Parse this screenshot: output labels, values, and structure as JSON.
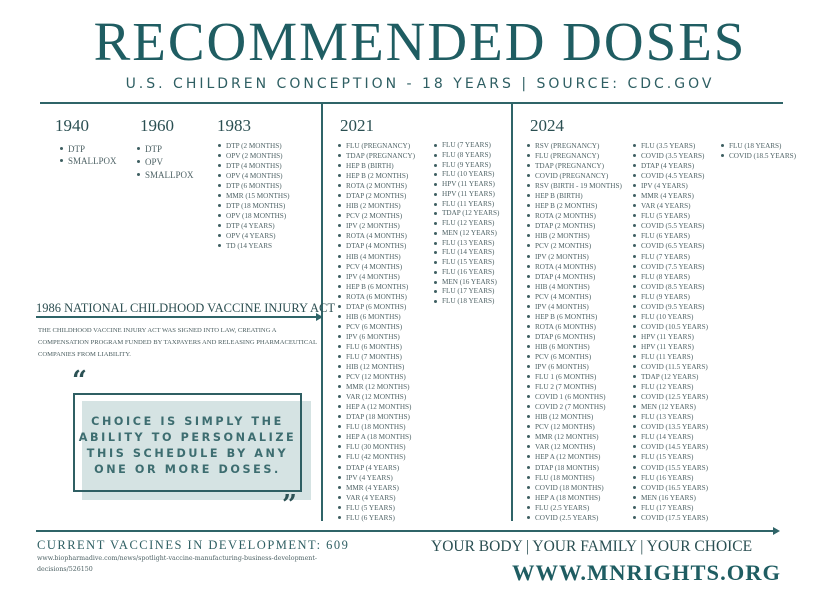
{
  "header": {
    "title": "RECOMMENDED DOSES",
    "subtitle": "U.S. CHILDREN CONCEPTION - 18 YEARS | SOURCE: CDC.GOV"
  },
  "colors": {
    "primary": "#1f5d62",
    "quote_bg": "#d5e3e3",
    "text": "#4f6366"
  },
  "schedules": {
    "y1940": {
      "year": "1940",
      "items": [
        "DTP",
        "SMALLPOX"
      ]
    },
    "y1960": {
      "year": "1960",
      "items": [
        "DTP",
        "OPV",
        "SMALLPOX"
      ]
    },
    "y1983": {
      "year": "1983",
      "items": [
        "DTP (2 MONTHS)",
        "OPV (2 MONTHS)",
        "DTP (4 MONTHS)",
        "OPV (4 MONTHS)",
        "DTP (6 MONTHS)",
        "MMR (15 MONTHS)",
        "DTP (18 MONTHS)",
        "OPV (18 MONTHS)",
        "DTP (4 YEARS)",
        "OPV (4 YEARS)",
        "TD (14 YEARS"
      ]
    },
    "y2021": {
      "year": "2021",
      "col1": [
        "FLU (PREGNANCY)",
        "TDAP (PREGNANCY)",
        "HEP B (BIRTH)",
        "HEP B (2 MONTHS)",
        "ROTA (2 MONTHS)",
        "DTAP (2 MONTHS)",
        "HIB (2 MONTHS)",
        "PCV (2 MONTHS)",
        "IPV (2 MONTHS)",
        "ROTA (4 MONTHS)",
        "DTAP (4 MONTHS)",
        "HIB (4 MONTHS)",
        "PCV (4 MONTHS)",
        "IPV (4 MONTHS)",
        "HEP B (6 MONTHS)",
        "ROTA (6 MONTHS)",
        "DTAP (6 MONTHS)",
        "HIB (6 MONTHS)",
        "PCV (6 MONTHS)",
        "IPV (6 MONTHS)",
        "FLU (6 MONTHS)",
        "FLU (7 MONTHS)",
        "HIB (12 MONTHS)",
        "PCV (12 MONTHS)",
        "MMR (12 MONTHS)",
        "VAR (12 MONTHS)",
        "HEP A (12 MONTHS)",
        "DTAP (18 MONTHS)",
        "FLU (18 MONTHS)",
        "HEP A (18 MONTHS)",
        "FLU (30 MONTHS)",
        "FLU (42 MONTHS)",
        "DTAP (4 YEARS)",
        "IPV (4 YEARS)",
        "MMR (4 YEARS)",
        "VAR (4 YEARS)",
        "FLU (5 YEARS)",
        "FLU (6 YEARS)"
      ],
      "col2": [
        "FLU (7 YEARS)",
        "FLU (8 YEARS)",
        "FLU (9 YEARS)",
        "FLU (10 YEARS)",
        "HPV (11 YEARS)",
        "HPV (11 YEARS)",
        "FLU (11 YEARS)",
        "TDAP (12 YEARS)",
        "FLU (12 YEARS)",
        "MEN (12 YEARS)",
        "FLU (13 YEARS)",
        "FLU (14 YEARS)",
        "FLU (15 YEARS)",
        "FLU (16 YEARS)",
        "MEN (16 YEARS)",
        "FLU (17 YEARS)",
        "FLU (18 YEARS)"
      ]
    },
    "y2024": {
      "year": "2024",
      "col1": [
        "RSV (PREGNANCY)",
        "FLU (PREGNANCY)",
        "TDAP (PREGNANCY)",
        "COVID (PREGNANCY)",
        "RSV (BIRTH - 19 MONTHS)",
        "HEP B (BIRTH)",
        "HEP B (2 MONTHS)",
        "ROTA (2 MONTHS)",
        "DTAP (2 MONTHS)",
        "HIB (2 MONTHS)",
        "PCV (2 MONTHS)",
        "IPV (2 MONTHS)",
        "ROTA (4 MONTHS)",
        "DTAP (4 MONTHS)",
        "HIB (4 MONTHS)",
        "PCV (4 MONTHS)",
        "IPV (4 MONTHS)",
        "HEP B (6 MONTHS)",
        "ROTA (6 MONTHS)",
        "DTAP (6 MONTHS)",
        "HIB (6 MONTHS)",
        "PCV (6 MONTHS)",
        "IPV (6 MONTHS)",
        "FLU 1 (6 MONTHS)",
        "FLU 2 (7 MONTHS)",
        "COVID 1 (6 MONTHS)",
        "COVID 2 (7 MONTHS)",
        "HIB (12 MONTHS)",
        "PCV (12 MONTHS)",
        "MMR (12 MONTHS)",
        "VAR (12 MONTHS)",
        "HEP A (12 MONTHS)",
        "DTAP (18 MONTHS)",
        "FLU (18 MONTHS)",
        "COVID (18 MONTHS)",
        "HEP A (18 MONTHS)",
        "FLU (2.5 YEARS)",
        "COVID (2.5 YEARS)"
      ],
      "col2": [
        "FLU (3.5 YEARS)",
        "COVID (3.5 YEARS)",
        "DTAP (4 YEARS)",
        "COVID (4.5 YEARS)",
        "IPV (4 YEARS)",
        "MMR (4 YEARS)",
        "VAR (4 YEARS)",
        "FLU (5 YEARS)",
        "COVID (5.5 YEARS)",
        "FLU (6 YEARS)",
        "COVID (6.5 YEARS)",
        "FLU (7 YEARS)",
        "COVID (7.5 YEARS)",
        "FLU (8 YEARS)",
        "COVID (8.5 YEARS)",
        "FLU (9 YEARS)",
        "COVID (9.5 YEARS)",
        "FLU (10 YEARS)",
        "COVID (10.5 YEARS)",
        "HPV (11 YEARS)",
        "HPV (11 YEARS)",
        "FLU (11 YEARS)",
        "COVID (11.5 YEARS)",
        "TDAP (12 YEARS)",
        "FLU (12 YEARS)",
        "COVID (12.5 YEARS)",
        "MEN (12 YEARS)",
        "FLU (13 YEARS)",
        "COVID (13.5 YEARS)",
        "FLU (14 YEARS)",
        "COVID (14.5 YEARS)",
        "FLU (15 YEARS)",
        "COVID (15.5 YEARS)",
        "FLU (16 YEARS)",
        "COVID (16.5 YEARS)",
        "MEN (16 YEARS)",
        "FLU (17 YEARS)",
        "COVID (17.5 YEARS)"
      ],
      "col3": [
        "FLU (18 YEARS)",
        "COVID (18.5 YEARS)"
      ]
    }
  },
  "act": {
    "title": "1986 NATIONAL CHILDHOOD VACCINE INJURY ACT",
    "text": "THE CHILDHOOD VACCINE INJURY ACT WAS SIGNED INTO LAW,  CREATING A COMPENSATION PROGRAM FUNDED BY TAXPAYERS AND RELEASING PHARMACEUTICAL COMPANIES FROM LIABILITY."
  },
  "quote": {
    "open": "“",
    "close": "”",
    "text": "CHOICE IS SIMPLY THE ABILITY TO PERSONALIZE THIS SCHEDULE BY ANY ONE OR MORE DOSES."
  },
  "footer": {
    "development": "CURRENT VACCINES IN DEVELOPMENT: 609",
    "source_url": "www.biopharmadive.com/news/spotlight-vaccine-manufacturing-business-development-decisions/526150",
    "tagline": "YOUR BODY | YOUR FAMILY | YOUR CHOICE",
    "website": "WWW.MNRIGHTS.ORG"
  }
}
